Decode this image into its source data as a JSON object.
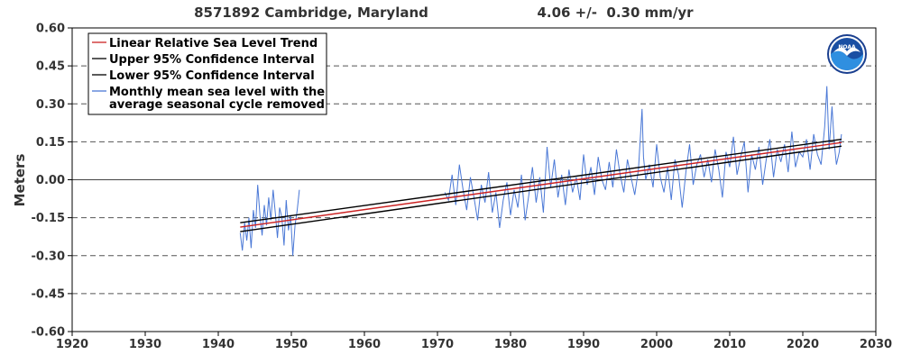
{
  "chart_data": {
    "type": "line",
    "title_left": "8571892 Cambridge, Maryland",
    "title_right": "4.06 +/-  0.30 mm/yr",
    "xlabel": "",
    "ylabel": "Meters",
    "xlim": [
      1920,
      2030
    ],
    "ylim": [
      -0.6,
      0.6
    ],
    "x_ticks": [
      1920,
      1930,
      1940,
      1950,
      1960,
      1970,
      1980,
      1990,
      2000,
      2010,
      2020,
      2030
    ],
    "y_ticks": [
      0.6,
      0.45,
      0.3,
      0.15,
      0.0,
      -0.15,
      -0.3,
      -0.45,
      -0.6
    ],
    "y_tick_labels": [
      "0.60",
      "0.45",
      "0.30",
      "0.15",
      "0.00",
      "-0.15",
      "-0.30",
      "-0.45",
      "-0.60"
    ],
    "grid": "horizontal dashed",
    "legend_position": "top-left",
    "logo": "NOAA",
    "colors": {
      "trend": "#cc2222",
      "confidence": "#000000",
      "monthly": "#4a78d6",
      "grid": "#555555"
    },
    "series": [
      {
        "name": "Linear Relative Sea Level Trend",
        "kind": "trend",
        "x": [
          1943.0,
          2025.3
        ],
        "y": [
          -0.187,
          0.147
        ]
      },
      {
        "name": "Upper 95% Confidence Interval",
        "kind": "upper",
        "x": [
          1943.0,
          2025.3
        ],
        "y": [
          -0.17,
          0.16
        ]
      },
      {
        "name": "Lower 95% Confidence Interval",
        "kind": "lower",
        "x": [
          1943.0,
          2025.3
        ],
        "y": [
          -0.205,
          0.133
        ]
      },
      {
        "name": "Monthly mean sea level with the average seasonal cycle removed",
        "kind": "monthly",
        "segments": [
          {
            "x": [
              1943.0,
              1943.3,
              1943.6,
              1943.9,
              1944.2,
              1944.5,
              1944.8,
              1945.1,
              1945.4,
              1945.7,
              1946.0,
              1946.3,
              1946.6,
              1946.9,
              1947.2,
              1947.5,
              1947.8,
              1948.1,
              1948.4,
              1948.7,
              1949.0,
              1949.3,
              1949.6,
              1949.9,
              1950.2,
              1950.5,
              1950.8,
              1951.1
            ],
            "y": [
              -0.21,
              -0.28,
              -0.17,
              -0.24,
              -0.15,
              -0.27,
              -0.12,
              -0.19,
              -0.02,
              -0.14,
              -0.22,
              -0.1,
              -0.18,
              -0.07,
              -0.16,
              -0.04,
              -0.13,
              -0.23,
              -0.11,
              -0.15,
              -0.26,
              -0.08,
              -0.2,
              -0.14,
              -0.3,
              -0.18,
              -0.12,
              -0.04
            ]
          },
          {
            "x": [
              1971.0,
              1971.5,
              1972.0,
              1972.5,
              1973.0,
              1973.5,
              1974.0,
              1974.5,
              1975.0,
              1975.5,
              1976.0,
              1976.5,
              1977.0,
              1977.5,
              1978.0,
              1978.5,
              1979.0,
              1979.5,
              1980.0,
              1980.5,
              1981.0,
              1981.5,
              1982.0,
              1982.5,
              1983.0,
              1983.5,
              1984.0,
              1984.5,
              1985.0,
              1985.5,
              1986.0,
              1986.5,
              1987.0,
              1987.5,
              1988.0,
              1988.5,
              1989.0,
              1989.5,
              1990.0,
              1990.5,
              1991.0,
              1991.5,
              1992.0,
              1992.5,
              1993.0,
              1993.5,
              1994.0,
              1994.5,
              1995.0,
              1995.5,
              1996.0,
              1996.5,
              1997.0,
              1997.5,
              1998.0,
              1998.2,
              1998.5,
              1999.0,
              1999.5,
              2000.0,
              2000.5,
              2001.0,
              2001.5,
              2002.0,
              2002.5,
              2003.0,
              2003.5,
              2004.0,
              2004.5,
              2005.0,
              2005.5,
              2006.0,
              2006.5,
              2007.0,
              2007.5,
              2008.0,
              2008.5,
              2009.0,
              2009.5,
              2010.0,
              2010.5,
              2011.0,
              2011.5,
              2012.0,
              2012.5,
              2013.0,
              2013.5,
              2014.0,
              2014.5,
              2015.0,
              2015.5,
              2016.0,
              2016.5,
              2017.0,
              2017.5,
              2018.0,
              2018.5,
              2019.0,
              2019.5,
              2020.0,
              2020.5,
              2021.0,
              2021.5,
              2022.0,
              2022.5,
              2023.0,
              2023.3,
              2023.6,
              2024.0,
              2024.3,
              2024.6,
              2025.0,
              2025.3
            ],
            "y": [
              -0.05,
              -0.08,
              0.02,
              -0.1,
              0.06,
              -0.04,
              -0.12,
              0.01,
              -0.07,
              -0.16,
              -0.02,
              -0.09,
              0.03,
              -0.13,
              -0.05,
              -0.19,
              -0.08,
              -0.01,
              -0.14,
              -0.04,
              -0.11,
              0.02,
              -0.16,
              -0.06,
              0.05,
              -0.09,
              0.01,
              -0.13,
              0.13,
              -0.03,
              0.08,
              -0.07,
              0.02,
              -0.1,
              0.04,
              -0.05,
              0.01,
              -0.08,
              0.1,
              -0.02,
              0.05,
              -0.06,
              0.09,
              0.0,
              -0.04,
              0.07,
              -0.03,
              0.12,
              0.02,
              -0.05,
              0.08,
              0.01,
              -0.06,
              0.04,
              0.28,
              0.09,
              0.0,
              0.06,
              -0.03,
              0.14,
              0.01,
              -0.05,
              0.05,
              -0.08,
              0.08,
              0.02,
              -0.11,
              0.03,
              0.14,
              -0.02,
              0.06,
              0.1,
              0.01,
              0.08,
              -0.01,
              0.12,
              0.04,
              -0.07,
              0.11,
              0.05,
              0.17,
              0.02,
              0.09,
              0.15,
              -0.05,
              0.1,
              0.04,
              0.13,
              -0.02,
              0.08,
              0.16,
              0.01,
              0.12,
              0.07,
              0.14,
              0.03,
              0.19,
              0.05,
              0.11,
              0.09,
              0.16,
              0.04,
              0.18,
              0.1,
              0.06,
              0.21,
              0.37,
              0.12,
              0.29,
              0.15,
              0.06,
              0.11,
              0.18
            ]
          }
        ]
      }
    ]
  }
}
